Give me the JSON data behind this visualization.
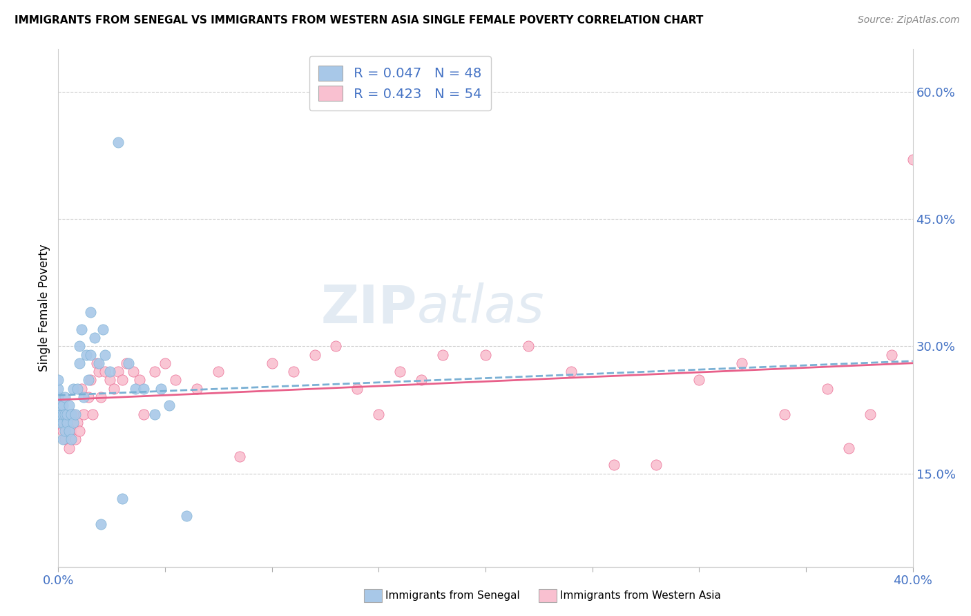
{
  "title": "IMMIGRANTS FROM SENEGAL VS IMMIGRANTS FROM WESTERN ASIA SINGLE FEMALE POVERTY CORRELATION CHART",
  "source": "Source: ZipAtlas.com",
  "ylabel": "Single Female Poverty",
  "xlim": [
    0.0,
    0.4
  ],
  "ylim": [
    0.04,
    0.65
  ],
  "xticks": [
    0.0,
    0.05,
    0.1,
    0.15,
    0.2,
    0.25,
    0.3,
    0.35,
    0.4
  ],
  "ytick_positions": [
    0.15,
    0.3,
    0.45,
    0.6
  ],
  "ytick_labels": [
    "15.0%",
    "30.0%",
    "45.0%",
    "60.0%"
  ],
  "watermark_zip": "ZIP",
  "watermark_atlas": "atlas",
  "legend_r1": "R = 0.047",
  "legend_n1": "N = 48",
  "legend_r2": "R = 0.423",
  "legend_n2": "N = 54",
  "color_senegal": "#a8c8e8",
  "color_western_asia": "#f9c0d0",
  "color_senegal_line": "#7ab0d4",
  "color_western_asia_line": "#e8608a",
  "background_color": "#ffffff",
  "grid_color": "#cccccc",
  "label_color": "#4472c4",
  "senegal_x": [
    0.0,
    0.0,
    0.0,
    0.0,
    0.0,
    0.001,
    0.001,
    0.001,
    0.002,
    0.002,
    0.002,
    0.002,
    0.003,
    0.003,
    0.003,
    0.004,
    0.004,
    0.005,
    0.005,
    0.006,
    0.006,
    0.007,
    0.007,
    0.008,
    0.009,
    0.01,
    0.01,
    0.011,
    0.012,
    0.013,
    0.014,
    0.015,
    0.015,
    0.017,
    0.019,
    0.02,
    0.021,
    0.022,
    0.024,
    0.028,
    0.03,
    0.033,
    0.036,
    0.04,
    0.045,
    0.048,
    0.052,
    0.06
  ],
  "senegal_y": [
    0.22,
    0.23,
    0.24,
    0.25,
    0.26,
    0.21,
    0.22,
    0.23,
    0.19,
    0.21,
    0.22,
    0.23,
    0.2,
    0.22,
    0.24,
    0.21,
    0.22,
    0.2,
    0.23,
    0.19,
    0.22,
    0.21,
    0.25,
    0.22,
    0.25,
    0.28,
    0.3,
    0.32,
    0.24,
    0.29,
    0.26,
    0.29,
    0.34,
    0.31,
    0.28,
    0.09,
    0.32,
    0.29,
    0.27,
    0.54,
    0.12,
    0.28,
    0.25,
    0.25,
    0.22,
    0.25,
    0.23,
    0.1
  ],
  "western_asia_x": [
    0.0,
    0.002,
    0.003,
    0.005,
    0.006,
    0.007,
    0.008,
    0.009,
    0.01,
    0.011,
    0.012,
    0.014,
    0.015,
    0.016,
    0.018,
    0.019,
    0.02,
    0.022,
    0.024,
    0.026,
    0.028,
    0.03,
    0.032,
    0.035,
    0.038,
    0.04,
    0.045,
    0.05,
    0.055,
    0.065,
    0.075,
    0.085,
    0.1,
    0.11,
    0.12,
    0.13,
    0.14,
    0.15,
    0.16,
    0.17,
    0.18,
    0.2,
    0.22,
    0.24,
    0.26,
    0.28,
    0.3,
    0.32,
    0.34,
    0.36,
    0.37,
    0.38,
    0.39,
    0.4
  ],
  "western_asia_y": [
    0.21,
    0.2,
    0.19,
    0.18,
    0.2,
    0.22,
    0.19,
    0.21,
    0.2,
    0.25,
    0.22,
    0.24,
    0.26,
    0.22,
    0.28,
    0.27,
    0.24,
    0.27,
    0.26,
    0.25,
    0.27,
    0.26,
    0.28,
    0.27,
    0.26,
    0.22,
    0.27,
    0.28,
    0.26,
    0.25,
    0.27,
    0.17,
    0.28,
    0.27,
    0.29,
    0.3,
    0.25,
    0.22,
    0.27,
    0.26,
    0.29,
    0.29,
    0.3,
    0.27,
    0.16,
    0.16,
    0.26,
    0.28,
    0.22,
    0.25,
    0.18,
    0.22,
    0.29,
    0.52
  ]
}
